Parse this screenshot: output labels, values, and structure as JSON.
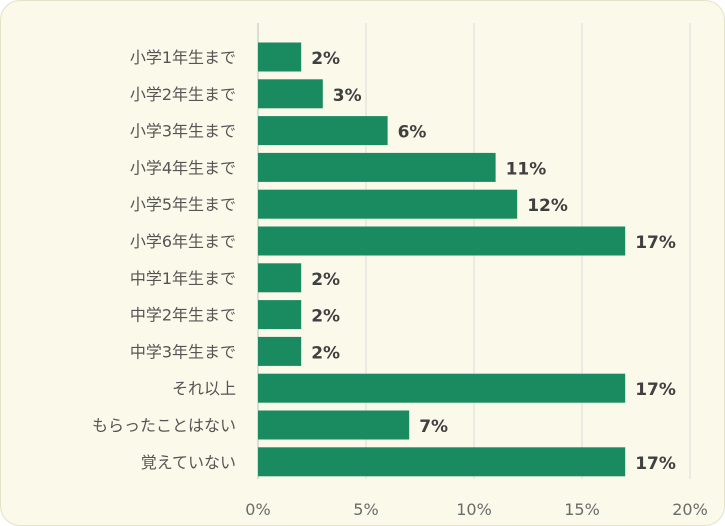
{
  "chart_data": {
    "type": "bar",
    "orientation": "horizontal",
    "categories": [
      "小学1年生まで",
      "小学2年生まで",
      "小学3年生まで",
      "小学4年生まで",
      "小学5年生まで",
      "小学6年生まで",
      "中学1年生まで",
      "中学2年生まで",
      "中学3年生まで",
      "それ以上",
      "もらったことはない",
      "覚えていない"
    ],
    "values": [
      2,
      3,
      6,
      11,
      12,
      17,
      2,
      2,
      2,
      17,
      7,
      17
    ],
    "data_labels": [
      "2%",
      "3%",
      "6%",
      "11%",
      "12%",
      "17%",
      "2%",
      "2%",
      "2%",
      "17%",
      "7%",
      "17%"
    ],
    "xlim": [
      0,
      20
    ],
    "xticks": [
      0,
      5,
      10,
      15,
      20
    ],
    "xtick_labels": [
      "0%",
      "5%",
      "10%",
      "15%",
      "20%"
    ],
    "title": "",
    "xlabel": "",
    "ylabel": "",
    "grid": "vertical",
    "legend": "none",
    "bar_color": "#1a8a60",
    "background_color": "#fbf9ea"
  }
}
